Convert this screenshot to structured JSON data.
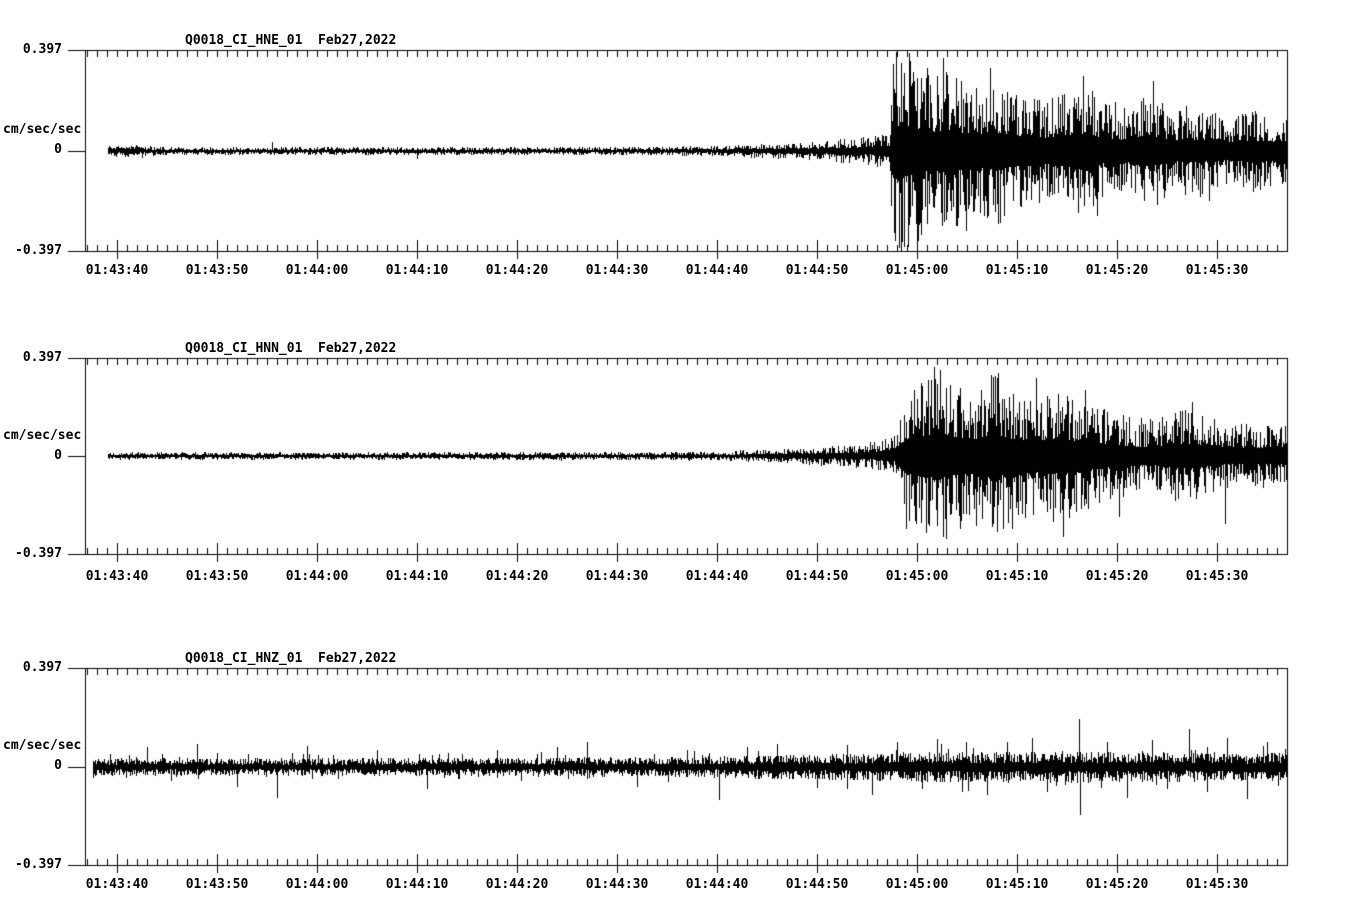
{
  "figure": {
    "background": "#ffffff",
    "ink": "#000000",
    "y_units_label": "cm/sec/sec",
    "y_max_label": "0.397",
    "y_zero_label": "0",
    "y_min_label": "-0.397"
  },
  "panels": [
    {
      "title": "Q0018_CI_HNE_01  Feb27,2022",
      "channel": "HNE"
    },
    {
      "title": "Q0018_CI_HNN_01  Feb27,2022",
      "channel": "HNN"
    },
    {
      "title": "Q0018_CI_HNZ_01  Feb27,2022",
      "channel": "HNZ"
    }
  ],
  "x_tick_labels": [
    "01:43:40",
    "01:43:50",
    "01:44:00",
    "01:44:10",
    "01:44:20",
    "01:44:30",
    "01:44:40",
    "01:44:50",
    "01:45:00",
    "01:45:10",
    "01:45:20",
    "01:45:30"
  ],
  "chart_data": [
    {
      "type": "line",
      "title": "Q0018_CI_HNE_01  Feb27,2022",
      "ylabel": "cm/sec/sec",
      "ylim": [
        -0.397,
        0.397
      ],
      "x_range": [
        "01:43:39",
        "01:45:37"
      ],
      "x_major_tick_s": 10,
      "x_minor_tick_s": 1,
      "t_reference": "seconds after 01:43:40",
      "trace_start_t": -0.9,
      "envelope": [
        [
          -1,
          0.024
        ],
        [
          2,
          0.026
        ],
        [
          5,
          0.016
        ],
        [
          15,
          0.016
        ],
        [
          30,
          0.015
        ],
        [
          45,
          0.016
        ],
        [
          55,
          0.018
        ],
        [
          61,
          0.022
        ],
        [
          66,
          0.03
        ],
        [
          70,
          0.038
        ],
        [
          73,
          0.048
        ],
        [
          75.5,
          0.06
        ],
        [
          77.2,
          0.075
        ],
        [
          77.6,
          0.4
        ],
        [
          79.5,
          0.38
        ],
        [
          81.5,
          0.3
        ],
        [
          83,
          0.34
        ],
        [
          85,
          0.26
        ],
        [
          87.5,
          0.29
        ],
        [
          90,
          0.23
        ],
        [
          93,
          0.2
        ],
        [
          96,
          0.27
        ],
        [
          98.5,
          0.2
        ],
        [
          101,
          0.17
        ],
        [
          103.5,
          0.24
        ],
        [
          105.5,
          0.16
        ],
        [
          108.5,
          0.18
        ],
        [
          111,
          0.13
        ],
        [
          113.5,
          0.17
        ],
        [
          115.5,
          0.14
        ],
        [
          117,
          0.16
        ]
      ],
      "spikes": [
        [
          15.5,
          0.035
        ],
        [
          30,
          -0.03
        ],
        [
          77.9,
          0.397
        ],
        [
          78.4,
          -0.397
        ],
        [
          79.2,
          0.39
        ],
        [
          80.1,
          -0.36
        ],
        [
          81.0,
          0.33
        ],
        [
          82.6,
          0.37
        ],
        [
          84.9,
          -0.32
        ],
        [
          87.3,
          0.33
        ],
        [
          96.6,
          0.3
        ],
        [
          98.0,
          -0.26
        ],
        [
          103.6,
          0.28
        ],
        [
          109.2,
          -0.2
        ]
      ]
    },
    {
      "type": "line",
      "title": "Q0018_CI_HNN_01  Feb27,2022",
      "ylabel": "cm/sec/sec",
      "ylim": [
        -0.397,
        0.397
      ],
      "x_range": [
        "01:43:39",
        "01:45:37"
      ],
      "x_major_tick_s": 10,
      "x_minor_tick_s": 1,
      "t_reference": "seconds after 01:43:40",
      "trace_start_t": -0.9,
      "envelope": [
        [
          -1,
          0.017
        ],
        [
          5,
          0.015
        ],
        [
          20,
          0.015
        ],
        [
          35,
          0.016
        ],
        [
          50,
          0.016
        ],
        [
          58,
          0.018
        ],
        [
          63,
          0.024
        ],
        [
          67,
          0.03
        ],
        [
          71,
          0.04
        ],
        [
          74,
          0.05
        ],
        [
          76.5,
          0.065
        ],
        [
          78,
          0.1
        ],
        [
          79,
          0.27
        ],
        [
          80.5,
          0.32
        ],
        [
          82,
          0.37
        ],
        [
          83.5,
          0.31
        ],
        [
          85.5,
          0.27
        ],
        [
          87.5,
          0.34
        ],
        [
          89.5,
          0.27
        ],
        [
          91.5,
          0.25
        ],
        [
          94,
          0.28
        ],
        [
          96.5,
          0.23
        ],
        [
          98.5,
          0.2
        ],
        [
          100.5,
          0.17
        ],
        [
          102.5,
          0.145
        ],
        [
          104.5,
          0.17
        ],
        [
          107,
          0.2
        ],
        [
          109,
          0.16
        ],
        [
          111.5,
          0.125
        ],
        [
          113.5,
          0.14
        ],
        [
          115.5,
          0.12
        ],
        [
          117,
          0.13
        ]
      ],
      "spikes": [
        [
          78.9,
          -0.3
        ],
        [
          80.4,
          0.3
        ],
        [
          81.7,
          0.365
        ],
        [
          82.9,
          -0.34
        ],
        [
          84.3,
          -0.3
        ],
        [
          88.1,
          0.34
        ],
        [
          89.5,
          -0.3
        ],
        [
          91.9,
          0.32
        ],
        [
          94.6,
          -0.33
        ],
        [
          96.8,
          0.27
        ],
        [
          100.2,
          -0.25
        ],
        [
          107.5,
          0.22
        ],
        [
          110.8,
          -0.28
        ]
      ]
    },
    {
      "type": "line",
      "title": "Q0018_CI_HNZ_01  Feb27,2022",
      "ylabel": "cm/sec/sec",
      "ylim": [
        -0.397,
        0.397
      ],
      "x_range": [
        "01:43:37",
        "01:45:37"
      ],
      "x_major_tick_s": 10,
      "x_minor_tick_s": 1,
      "t_reference": "seconds after 01:43:40",
      "trace_start_t": -2.4,
      "envelope": [
        [
          -2.4,
          0.036
        ],
        [
          10,
          0.036
        ],
        [
          25,
          0.036
        ],
        [
          40,
          0.038
        ],
        [
          50,
          0.04
        ],
        [
          58,
          0.042
        ],
        [
          64,
          0.048
        ],
        [
          70,
          0.052
        ],
        [
          76,
          0.058
        ],
        [
          82,
          0.065
        ],
        [
          88,
          0.062
        ],
        [
          94,
          0.066
        ],
        [
          100,
          0.062
        ],
        [
          106,
          0.06
        ],
        [
          111,
          0.055
        ],
        [
          117,
          0.06
        ]
      ],
      "spikes": [
        [
          3,
          0.08
        ],
        [
          8,
          0.095
        ],
        [
          12,
          -0.08
        ],
        [
          16,
          -0.125
        ],
        [
          19,
          0.085
        ],
        [
          26,
          0.07
        ],
        [
          31,
          -0.09
        ],
        [
          38,
          0.07
        ],
        [
          44,
          0.08
        ],
        [
          47,
          0.1
        ],
        [
          52,
          -0.08
        ],
        [
          57,
          0.07
        ],
        [
          60.2,
          -0.135
        ],
        [
          63,
          0.08
        ],
        [
          66,
          0.095
        ],
        [
          70,
          -0.085
        ],
        [
          73,
          0.09
        ],
        [
          75.5,
          -0.115
        ],
        [
          78,
          0.1
        ],
        [
          80.5,
          -0.09
        ],
        [
          82,
          0.115
        ],
        [
          84.5,
          -0.1
        ],
        [
          87,
          -0.115
        ],
        [
          89,
          0.1
        ],
        [
          91.5,
          0.12
        ],
        [
          93,
          -0.1
        ],
        [
          96.2,
          0.195
        ],
        [
          96.3,
          -0.195
        ],
        [
          99,
          0.1
        ],
        [
          101,
          -0.125
        ],
        [
          103.5,
          0.11
        ],
        [
          105,
          -0.09
        ],
        [
          107.2,
          0.155
        ],
        [
          109,
          -0.1
        ],
        [
          111,
          0.12
        ],
        [
          113,
          -0.13
        ],
        [
          115,
          0.1
        ]
      ]
    }
  ]
}
